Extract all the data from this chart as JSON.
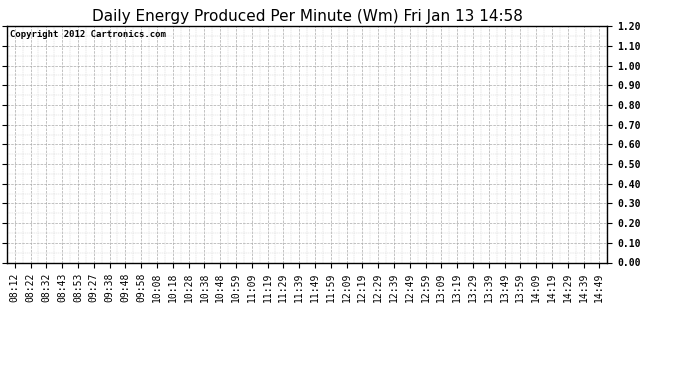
{
  "title": "Daily Energy Produced Per Minute (Wm) Fri Jan 13 14:58",
  "copyright_text": "Copyright 2012 Cartronics.com",
  "ylim": [
    0.0,
    1.2
  ],
  "yticks": [
    0.0,
    0.1,
    0.2,
    0.3,
    0.4,
    0.5,
    0.6,
    0.7,
    0.8,
    0.9,
    1.0,
    1.1,
    1.2
  ],
  "x_labels": [
    "08:12",
    "08:22",
    "08:32",
    "08:43",
    "08:53",
    "09:27",
    "09:38",
    "09:48",
    "09:58",
    "10:08",
    "10:18",
    "10:28",
    "10:38",
    "10:48",
    "10:59",
    "11:09",
    "11:19",
    "11:29",
    "11:39",
    "11:49",
    "11:59",
    "12:09",
    "12:19",
    "12:29",
    "12:39",
    "12:49",
    "12:59",
    "13:09",
    "13:19",
    "13:29",
    "13:39",
    "13:49",
    "13:59",
    "14:09",
    "14:19",
    "14:29",
    "14:39",
    "14:49"
  ],
  "background_color": "#ffffff",
  "plot_bg_color": "#ffffff",
  "grid_color": "#aaaaaa",
  "grid_linestyle": "--",
  "grid_linewidth": 0.5,
  "title_fontsize": 11,
  "tick_fontsize": 7,
  "copyright_fontsize": 6.5,
  "border_color": "#000000",
  "minor_grid_color": "#cccccc",
  "minor_grid_linestyle": "--",
  "minor_grid_linewidth": 0.3,
  "fig_width": 6.9,
  "fig_height": 3.75,
  "dpi": 100
}
